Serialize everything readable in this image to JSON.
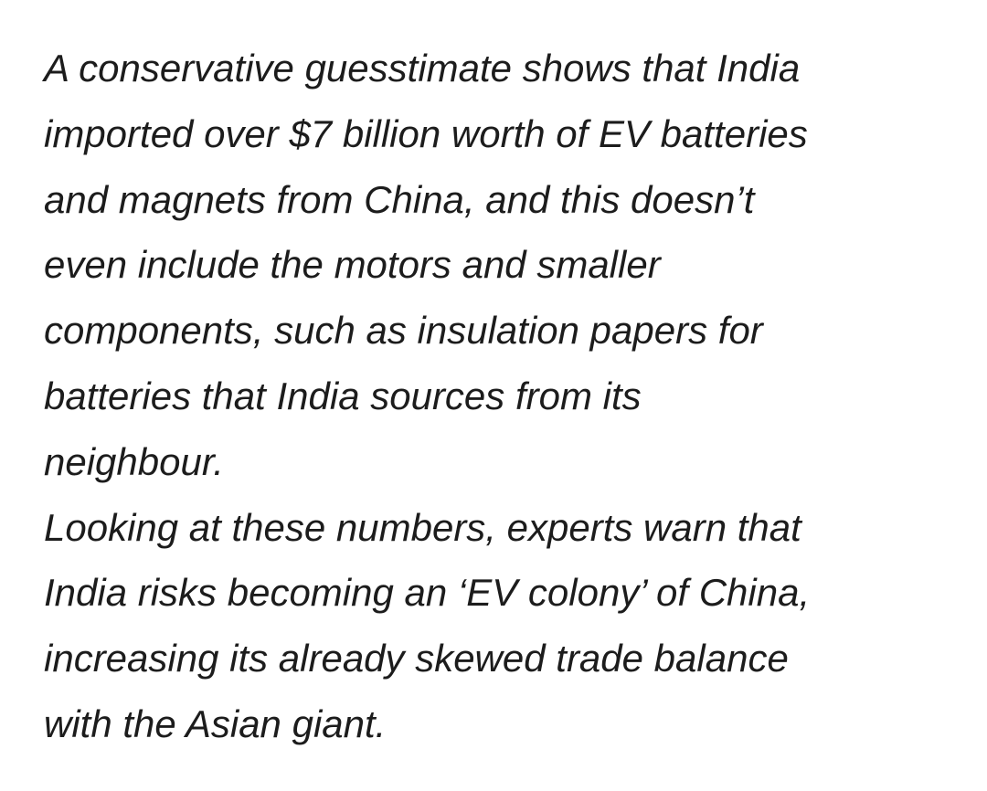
{
  "paragraphs": [
    {
      "lines": [
        "A conservative guesstimate shows that India",
        "imported over $7 billion worth of EV batteries",
        "and magnets from China, and this doesn’t",
        "even include the motors and smaller",
        "components, such as insulation papers for",
        "batteries that India sources from its",
        "neighbour."
      ]
    },
    {
      "lines": [
        "Looking at these numbers, experts warn that",
        "India risks becoming an ‘EV colony’ of China,",
        "increasing its already skewed trade balance",
        "with the Asian giant."
      ]
    }
  ]
}
